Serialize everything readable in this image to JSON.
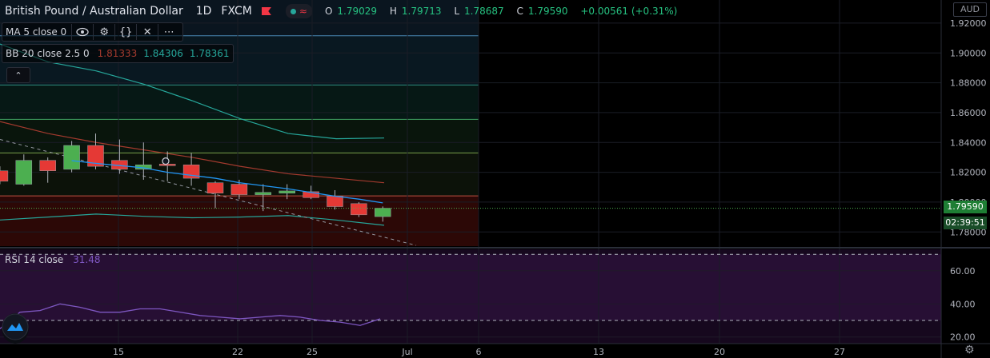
{
  "header": {
    "title": "British Pound / Australian Dollar",
    "interval": "1D",
    "exchange": "FXCM",
    "ohlc": {
      "O": "1.79029",
      "H": "1.79713",
      "L": "1.78687",
      "C": "1.79590",
      "change": "+0.00561 (+0.31%)"
    }
  },
  "indicators": {
    "ma": {
      "label": "MA 5 close 0"
    },
    "bb": {
      "label": "BB 20 close 2.5 0",
      "basis": "1.81333",
      "upper": "1.84306",
      "lower": "1.78361"
    },
    "rsi": {
      "label": "RSI 14 close",
      "value": "31.48"
    }
  },
  "axis": {
    "currency": "AUD",
    "current_price": "1.79590",
    "countdown": "02:39:51"
  },
  "colors": {
    "up": "#4caf50",
    "down": "#e53935",
    "ma": "#2196f3",
    "bb_upper": "#26a69a",
    "bb_basis": "#a33a2e",
    "bb_lower": "#26a69a",
    "rsi": "#7e57c2",
    "price_line": "#4caf50"
  },
  "chart_data": [
    {
      "type": "candlestick",
      "x_tick_labels": [
        "15",
        "22",
        "25",
        "Jul",
        "6",
        "13",
        "20",
        "27"
      ],
      "y_tick_labels": [
        "1.92000",
        "1.90000",
        "1.88000",
        "1.86000",
        "1.84000",
        "1.82000",
        "1.80000",
        "1.78000"
      ],
      "ylim": [
        1.7705,
        1.9355
      ],
      "candles": [
        {
          "o": 1.821,
          "h": 1.824,
          "l": 1.812,
          "c": 1.814
        },
        {
          "o": 1.812,
          "h": 1.832,
          "l": 1.811,
          "c": 1.828
        },
        {
          "o": 1.828,
          "h": 1.83,
          "l": 1.813,
          "c": 1.821
        },
        {
          "o": 1.822,
          "h": 1.841,
          "l": 1.82,
          "c": 1.838
        },
        {
          "o": 1.838,
          "h": 1.846,
          "l": 1.822,
          "c": 1.824
        },
        {
          "o": 1.828,
          "h": 1.842,
          "l": 1.819,
          "c": 1.822
        },
        {
          "o": 1.822,
          "h": 1.84,
          "l": 1.815,
          "c": 1.825
        },
        {
          "o": 1.8255,
          "h": 1.834,
          "l": 1.814,
          "c": 1.8245
        },
        {
          "o": 1.825,
          "h": 1.833,
          "l": 1.811,
          "c": 1.816
        },
        {
          "o": 1.813,
          "h": 1.814,
          "l": 1.796,
          "c": 1.806
        },
        {
          "o": 1.812,
          "h": 1.815,
          "l": 1.802,
          "c": 1.805
        },
        {
          "o": 1.805,
          "h": 1.812,
          "l": 1.794,
          "c": 1.8065
        },
        {
          "o": 1.806,
          "h": 1.812,
          "l": 1.802,
          "c": 1.8075
        },
        {
          "o": 1.807,
          "h": 1.811,
          "l": 1.802,
          "c": 1.803
        },
        {
          "o": 1.804,
          "h": 1.808,
          "l": 1.795,
          "c": 1.797
        },
        {
          "o": 1.799,
          "h": 1.8,
          "l": 1.79,
          "c": 1.7915
        },
        {
          "o": 1.7903,
          "h": 1.7971,
          "l": 1.7869,
          "c": 1.7959
        }
      ],
      "ma": [
        1.8278,
        1.826,
        1.8245,
        1.823,
        1.82,
        1.818,
        1.816,
        1.813,
        1.811,
        1.809,
        1.8065,
        1.804,
        1.802,
        1.7995
      ],
      "bb_upper": [
        1.906,
        1.894,
        1.888,
        1.879,
        1.868,
        1.856,
        1.846,
        1.8425,
        1.843
      ],
      "bb_basis": [
        1.854,
        1.846,
        1.84,
        1.835,
        1.83,
        1.824,
        1.819,
        1.816,
        1.813
      ],
      "bb_lower": [
        1.788,
        1.79,
        1.792,
        1.7905,
        1.7895,
        1.79,
        1.791,
        1.788,
        1.7845
      ]
    },
    {
      "type": "line",
      "name": "RSI",
      "y_tick_labels": [
        "60.00",
        "40.00",
        "20.00"
      ],
      "ylim": [
        16,
        73
      ],
      "bands": [
        30,
        70
      ],
      "values": [
        25,
        35,
        36,
        40,
        38,
        35,
        35,
        37,
        37,
        35,
        33,
        32,
        31,
        32,
        33,
        32,
        30,
        29,
        27,
        31
      ]
    }
  ]
}
